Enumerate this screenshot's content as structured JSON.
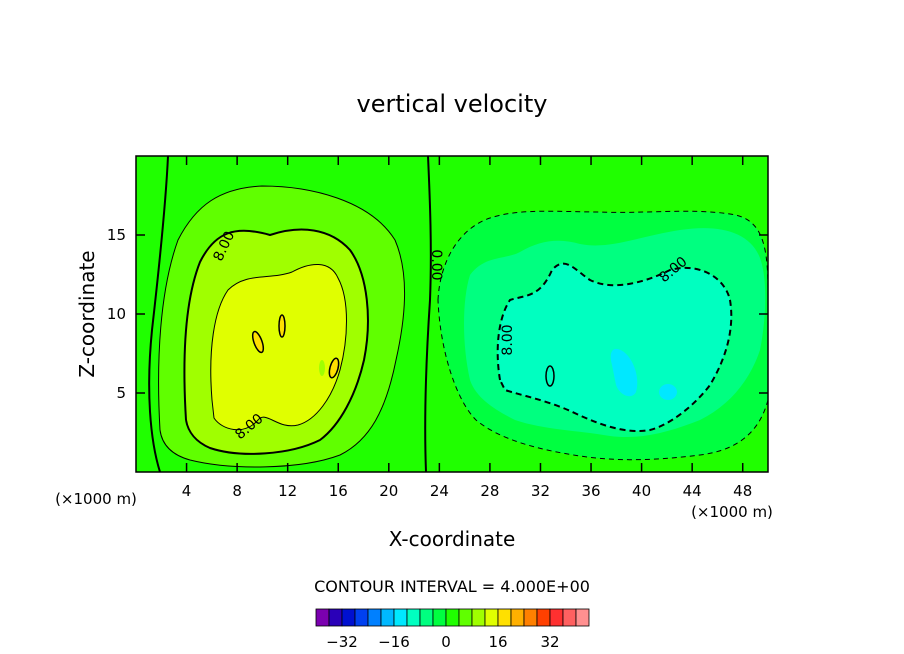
{
  "chart_data": {
    "type": "contour",
    "title": "vertical velocity",
    "xlabel": "X-coordinate",
    "ylabel": "Z-coordinate",
    "x_units_left": "(×1000 m)",
    "x_units_right": "(×1000 m)",
    "xlim": [
      0,
      50
    ],
    "ylim": [
      0,
      20
    ],
    "x_ticks": [
      4,
      8,
      12,
      16,
      20,
      24,
      28,
      32,
      36,
      40,
      44,
      48
    ],
    "y_ticks": [
      5,
      10,
      15
    ],
    "contour_interval_text": "CONTOUR INTERVAL = 4.000E+00",
    "contour_interval": 4,
    "contour_labels": [
      "8.00",
      "8.00",
      "0.00",
      "8.00",
      "8.00"
    ],
    "colorbar": {
      "colors": [
        "#7b00b0",
        "#2a00b8",
        "#0010d0",
        "#0040f0",
        "#0080ff",
        "#00b8ff",
        "#00e8ff",
        "#00ffc0",
        "#00ff80",
        "#00ff40",
        "#20ff00",
        "#60ff00",
        "#a0ff00",
        "#e0ff00",
        "#ffe000",
        "#ffb000",
        "#ff8000",
        "#ff4000",
        "#ff3030",
        "#ff6060",
        "#ff9090"
      ],
      "tick_labels": [
        "−32",
        "−16",
        "0",
        "16",
        "32"
      ]
    },
    "fields": {
      "updraft": {
        "center_x": 11,
        "center_z": 9,
        "peak": 16
      },
      "downdraft": {
        "center_x": 38,
        "center_z": 7,
        "min": -12
      }
    }
  }
}
